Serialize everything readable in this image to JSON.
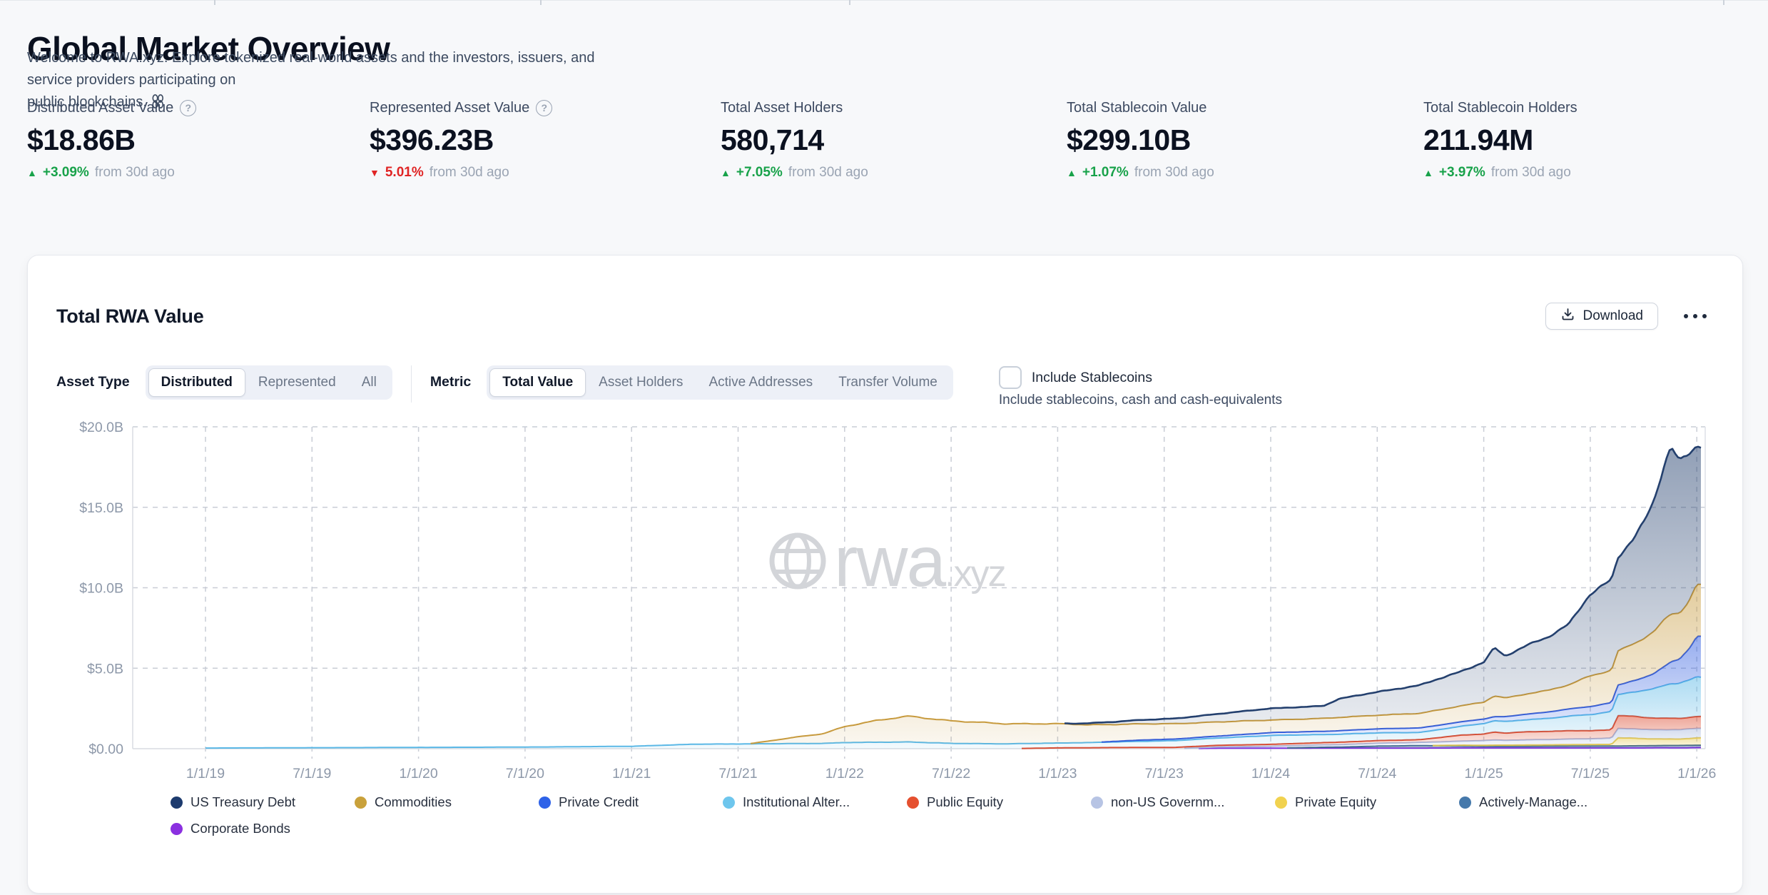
{
  "header": {
    "title": "Global Market Overview",
    "subtitle_line1": "Welcome to RWA.xyz. Explore tokenized real-world assets and the investors, issuers, and service providers participating on",
    "subtitle_line2": "public blockchains."
  },
  "stats": [
    {
      "label": "Distributed Asset Value",
      "help": true,
      "value": "$18.86B",
      "delta_dir": "up",
      "delta_arrow": "▲",
      "delta_pct": "+3.09%",
      "delta_note": "from 30d ago"
    },
    {
      "label": "Represented Asset Value",
      "help": true,
      "value": "$396.23B",
      "delta_dir": "down",
      "delta_arrow": "▼",
      "delta_pct": "5.01%",
      "delta_note": "from 30d ago"
    },
    {
      "label": "Total Asset Holders",
      "help": false,
      "value": "580,714",
      "delta_dir": "up",
      "delta_arrow": "▲",
      "delta_pct": "+7.05%",
      "delta_note": "from 30d ago"
    },
    {
      "label": "Total Stablecoin Value",
      "help": false,
      "value": "$299.10B",
      "delta_dir": "up",
      "delta_arrow": "▲",
      "delta_pct": "+1.07%",
      "delta_note": "from 30d ago"
    },
    {
      "label": "Total Stablecoin Holders",
      "help": false,
      "value": "211.94M",
      "delta_dir": "up",
      "delta_arrow": "▲",
      "delta_pct": "+3.97%",
      "delta_note": "from 30d ago"
    }
  ],
  "panel": {
    "title": "Total RWA Value",
    "download_label": "Download",
    "asset_type": {
      "label": "Asset Type",
      "options": [
        "Distributed",
        "Represented",
        "All"
      ],
      "selected": "Distributed"
    },
    "metric": {
      "label": "Metric",
      "options": [
        "Total Value",
        "Asset Holders",
        "Active Addresses",
        "Transfer Volume"
      ],
      "selected": "Total Value"
    },
    "stablecoins": {
      "label": "Include Stablecoins",
      "caption": "Include stablecoins, cash and cash-equivalents",
      "checked": false
    },
    "watermark": {
      "text": "rwa",
      "suffix": ".xyz"
    }
  },
  "chart_data": {
    "type": "area",
    "stacked": true,
    "title": "Total RWA Value",
    "unit": "$B",
    "ylim": [
      0,
      20
    ],
    "grid": "dashed",
    "legend_position": "bottom",
    "x_tick_labels": [
      "1/1/19",
      "7/1/19",
      "1/1/20",
      "7/1/20",
      "1/1/21",
      "7/1/21",
      "1/1/22",
      "7/1/22",
      "1/1/23",
      "7/1/23",
      "1/1/24",
      "7/1/24",
      "1/1/25",
      "7/1/25",
      "1/1/26"
    ],
    "x_tick_years": [
      2019.0,
      2019.5,
      2020.0,
      2020.5,
      2021.0,
      2021.5,
      2022.0,
      2022.5,
      2023.0,
      2023.5,
      2024.0,
      2024.5,
      2025.0,
      2025.5,
      2026.0
    ],
    "y_ticks": [
      {
        "label": "$0.00",
        "value": 0
      },
      {
        "label": "$5.0B",
        "value": 5
      },
      {
        "label": "$10.0B",
        "value": 10
      },
      {
        "label": "$15.0B",
        "value": 15
      },
      {
        "label": "$20.0B",
        "value": 20
      }
    ],
    "x_years": [
      2019.0,
      2019.5,
      2020.0,
      2020.5,
      2021.0,
      2021.3,
      2021.55,
      2021.8,
      2021.9,
      2022.0,
      2022.15,
      2022.3,
      2022.5,
      2022.75,
      2023.0,
      2023.15,
      2023.4,
      2023.55,
      2023.75,
      2024.0,
      2024.25,
      2024.32,
      2024.5,
      2024.7,
      2024.9,
      2025.0,
      2025.05,
      2025.1,
      2025.2,
      2025.3,
      2025.4,
      2025.5,
      2025.6,
      2025.63,
      2025.7,
      2025.75,
      2025.8,
      2025.85,
      2025.88,
      2025.92,
      2025.96,
      2026.0
    ],
    "series": [
      {
        "name": "US Treasury Debt",
        "color": "#24406e",
        "dot": "#1d3b6e",
        "values": [
          0,
          0,
          0,
          0,
          0,
          0,
          0,
          0,
          0,
          0,
          0,
          0,
          0,
          0,
          0,
          0.1,
          0.25,
          0.32,
          0.5,
          0.72,
          0.78,
          1.15,
          1.45,
          1.75,
          2.15,
          2.5,
          3.0,
          2.6,
          3.0,
          3.3,
          3.8,
          5.1,
          5.6,
          5.8,
          6.5,
          7.2,
          8.2,
          9.8,
          10.4,
          9.4,
          9.2,
          8.6
        ]
      },
      {
        "name": "Commodities",
        "color": "#c79a3d",
        "dot": "#c9a13b",
        "values": [
          0,
          0,
          0,
          0,
          0,
          0,
          0,
          0.45,
          0.6,
          1.0,
          1.35,
          1.6,
          1.4,
          1.25,
          1.2,
          1.1,
          1.0,
          0.95,
          0.88,
          0.78,
          0.8,
          0.82,
          0.85,
          0.9,
          1.0,
          1.05,
          1.3,
          1.15,
          1.25,
          1.35,
          1.5,
          1.9,
          2.0,
          2.1,
          2.3,
          2.45,
          2.6,
          2.9,
          3.0,
          2.85,
          2.9,
          3.2
        ]
      },
      {
        "name": "Private Credit",
        "color": "#2e5be0",
        "dot": "#2e62e8",
        "values": [
          0,
          0,
          0,
          0,
          0,
          0,
          0,
          0,
          0,
          0,
          0,
          0,
          0,
          0,
          0,
          0,
          0.08,
          0.1,
          0.12,
          0.18,
          0.2,
          0.22,
          0.25,
          0.28,
          0.28,
          0.28,
          0.25,
          0.3,
          0.35,
          0.4,
          0.45,
          0.5,
          0.55,
          0.6,
          0.7,
          0.8,
          0.95,
          1.2,
          1.35,
          1.5,
          1.9,
          2.55
        ]
      },
      {
        "name": "Institutional Alter...",
        "color": "#5bb8e6",
        "dot": "#6ec6ed",
        "values": [
          0.04,
          0.06,
          0.08,
          0.1,
          0.15,
          0.28,
          0.3,
          0.32,
          0.33,
          0.38,
          0.4,
          0.42,
          0.33,
          0.3,
          0.3,
          0.32,
          0.38,
          0.42,
          0.45,
          0.55,
          0.5,
          0.5,
          0.48,
          0.45,
          0.55,
          0.65,
          0.7,
          0.72,
          0.75,
          0.8,
          0.9,
          1.0,
          1.15,
          1.3,
          1.5,
          1.65,
          1.8,
          2.05,
          2.15,
          2.2,
          2.3,
          2.45
        ]
      },
      {
        "name": "Public Equity",
        "color": "#dc4a2e",
        "dot": "#e5502f",
        "values": [
          0,
          0,
          0,
          0,
          0,
          0,
          0,
          0,
          0,
          0,
          0,
          0,
          0,
          0,
          0.05,
          0.06,
          0.08,
          0.08,
          0.1,
          0.12,
          0.14,
          0.15,
          0.16,
          0.17,
          0.38,
          0.4,
          0.5,
          0.45,
          0.5,
          0.5,
          0.52,
          0.5,
          0.52,
          0.8,
          0.78,
          0.75,
          0.73,
          0.72,
          0.72,
          0.7,
          0.72,
          0.74
        ]
      },
      {
        "name": "non-US Governm...",
        "color": "#a9b9dd",
        "dot": "#b7c4e4",
        "values": [
          0,
          0,
          0,
          0,
          0,
          0,
          0,
          0,
          0,
          0,
          0,
          0,
          0,
          0,
          0,
          0,
          0,
          0,
          0.08,
          0.12,
          0.15,
          0.15,
          0.18,
          0.2,
          0.25,
          0.3,
          0.32,
          0.3,
          0.32,
          0.33,
          0.35,
          0.36,
          0.38,
          0.58,
          0.58,
          0.57,
          0.57,
          0.58,
          0.58,
          0.58,
          0.59,
          0.59
        ]
      },
      {
        "name": "Private Equity",
        "color": "#e5c84e",
        "dot": "#f1d24f",
        "values": [
          0,
          0,
          0,
          0,
          0,
          0,
          0,
          0,
          0,
          0,
          0,
          0,
          0,
          0,
          0,
          0,
          0,
          0,
          0,
          0,
          0,
          0,
          0,
          0,
          0.05,
          0.06,
          0.07,
          0.07,
          0.08,
          0.08,
          0.09,
          0.09,
          0.1,
          0.5,
          0.48,
          0.45,
          0.42,
          0.4,
          0.4,
          0.4,
          0.42,
          0.45
        ]
      },
      {
        "name": "Actively-Manage...",
        "color": "#3d688f",
        "dot": "#4679ab",
        "values": [
          0,
          0,
          0,
          0,
          0,
          0,
          0,
          0,
          0,
          0,
          0,
          0,
          0,
          0,
          0,
          0,
          0,
          0,
          0,
          0,
          0.05,
          0.06,
          0.12,
          0.15,
          0.12,
          0.1,
          0.1,
          0.1,
          0.1,
          0.11,
          0.11,
          0.12,
          0.12,
          0.12,
          0.13,
          0.13,
          0.13,
          0.14,
          0.14,
          0.14,
          0.15,
          0.15
        ]
      },
      {
        "name": "Corporate Bonds",
        "color": "#7d2ee0",
        "dot": "#8b30e0",
        "values": [
          0,
          0,
          0,
          0,
          0,
          0,
          0,
          0,
          0,
          0,
          0,
          0,
          0,
          0,
          0,
          0,
          0,
          0,
          0.03,
          0.03,
          0.04,
          0.04,
          0.04,
          0.04,
          0.05,
          0.05,
          0.05,
          0.05,
          0.05,
          0.05,
          0.05,
          0.05,
          0.05,
          0.05,
          0.05,
          0.05,
          0.06,
          0.06,
          0.06,
          0.06,
          0.06,
          0.07
        ]
      }
    ]
  }
}
